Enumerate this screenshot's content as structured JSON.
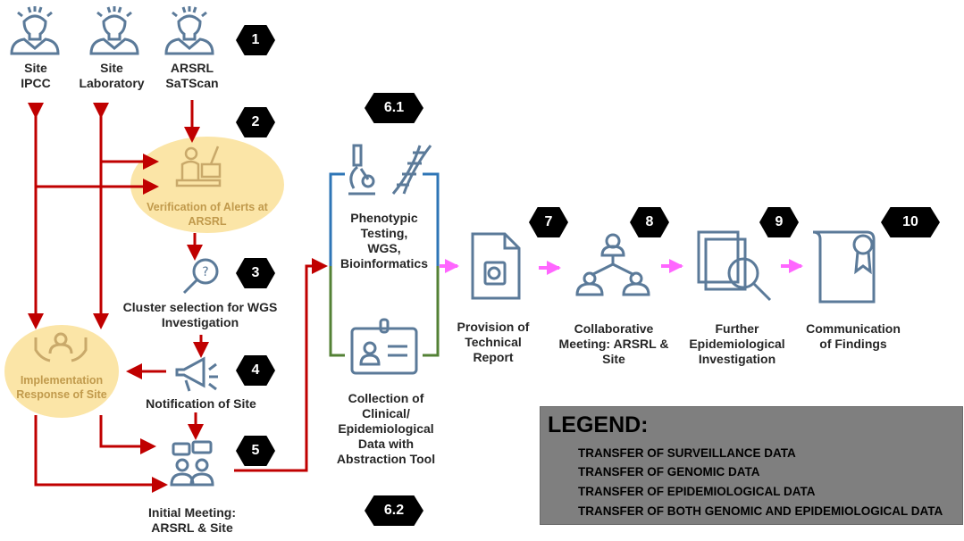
{
  "steps": {
    "s1": "1",
    "s2": "2",
    "s3": "3",
    "s4": "4",
    "s5": "5",
    "s61": "6.1",
    "s62": "6.2",
    "s7": "7",
    "s8": "8",
    "s9": "9",
    "s10": "10"
  },
  "top": {
    "ipcc": [
      "Site",
      "IPCC"
    ],
    "lab": [
      "Site",
      "Laboratory"
    ],
    "arsrl": [
      "ARSRL",
      "SaTScan"
    ]
  },
  "verification": [
    "Verification of Alerts at",
    "ARSRL"
  ],
  "cluster": [
    "Cluster selection for WGS",
    "Investigation"
  ],
  "implementation": [
    "Implementation",
    "Response of Site"
  ],
  "notification": "Notification of Site",
  "initial": [
    "Initial Meeting:",
    "ARSRL & Site"
  ],
  "phenotypic": [
    "Phenotypic",
    "Testing,",
    "WGS,",
    "Bioinformatics"
  ],
  "collection": [
    "Collection of",
    "Clinical/",
    "Epidemiological",
    "Data with",
    "Abstraction Tool"
  ],
  "provision": [
    "Provision of",
    "Technical",
    "Report"
  ],
  "collab": [
    "Collaborative",
    "Meeting: ARSRL &",
    "Site"
  ],
  "further": [
    "Further",
    "Epidemiological",
    "Investigation"
  ],
  "communication": [
    "Communication",
    "of Findings"
  ],
  "legend": {
    "title": "LEGEND:",
    "items": [
      {
        "label": "TRANSFER OF SURVEILLANCE  DATA",
        "color": "#c00000"
      },
      {
        "label": "TRANSFER OF GENOMIC DATA",
        "color": "#2e75b6"
      },
      {
        "label": "TRANSFER OF EPIDEMIOLOGICAL DATA",
        "color": "#375623"
      },
      {
        "label": "TRANSFER OF BOTH GENOMIC AND EPIDEMIOLOGICAL DATA",
        "color": "#ff66ff"
      }
    ]
  },
  "colors": {
    "surveillance": "#c00000",
    "genomic": "#2e75b6",
    "epidemiological": "#538135",
    "both": "#ff66ff",
    "icon": "#5b7a99",
    "highlight": "#fbe5a7",
    "tan_icon": "#c9a96a"
  }
}
